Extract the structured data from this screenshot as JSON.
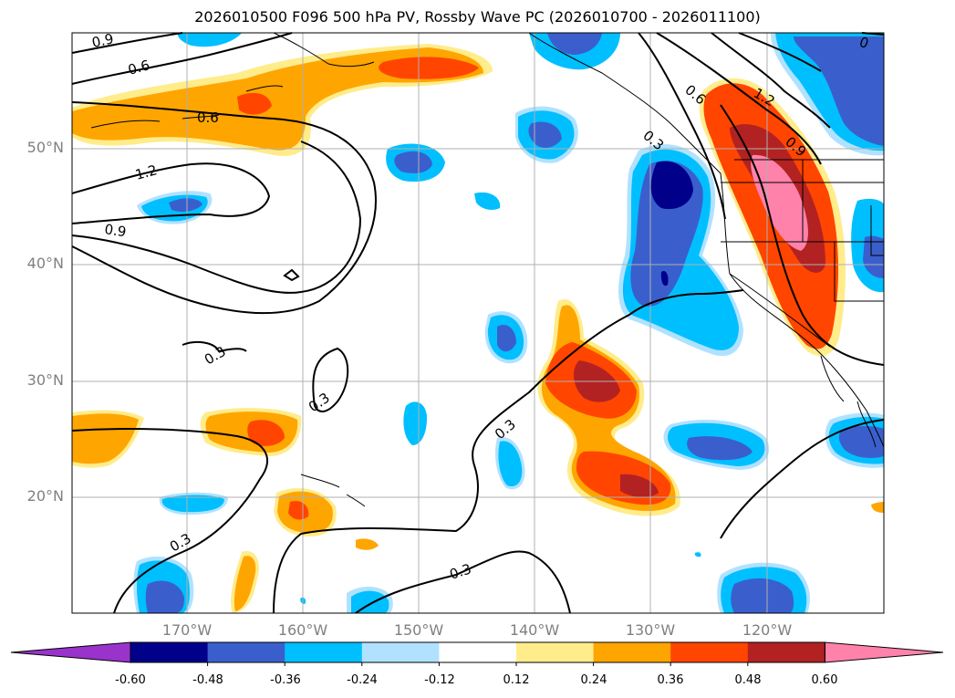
{
  "title": "2026010500 F096 500 hPa PV, Rossby Wave PC (2026010700 - 2026011100)",
  "lat_labels": [
    "50°N",
    "40°N",
    "30°N",
    "20°N"
  ],
  "lon_labels": [
    "170°W",
    "160°W",
    "150°W",
    "140°W",
    "130°W",
    "120°W"
  ],
  "colorbar": {
    "ticks": [
      "-0.60",
      "-0.48",
      "-0.36",
      "-0.24",
      "-0.12",
      "0.12",
      "0.24",
      "0.36",
      "0.48",
      "0.60"
    ],
    "colors": [
      "#9933cc",
      "#00008b",
      "#3a5fcd",
      "#00bfff",
      "#b0e2ff",
      "#ffffff",
      "#ffec8b",
      "#ffa500",
      "#ff4500",
      "#b22222",
      "#ff82ab"
    ]
  },
  "contour_labels": [
    "0.9",
    "0.6",
    "0.6",
    "1.2",
    "0.9",
    "0.3",
    "0.3",
    "0.3",
    "0.3",
    "0.3",
    "0.6",
    "0.3",
    "1.2",
    "0.9",
    "0"
  ],
  "colors": {
    "land_outline": "#000000",
    "grid": "#b0b0b0",
    "axis_label": "#808080"
  }
}
